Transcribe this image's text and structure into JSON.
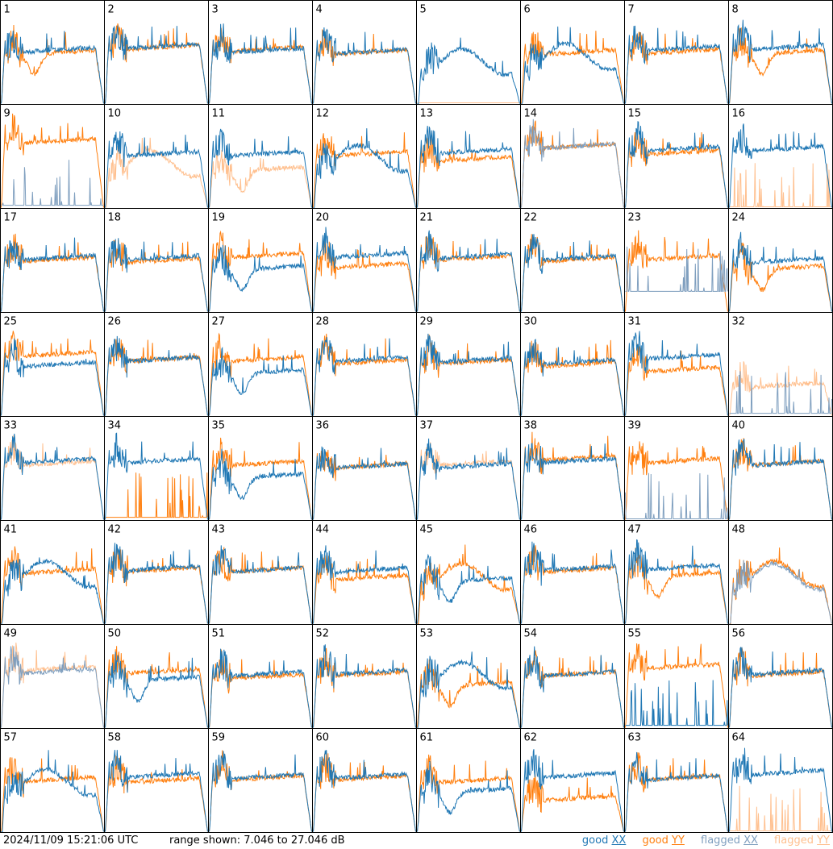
{
  "footer": {
    "timestamp": "2024/11/09 15:21:06 UTC",
    "range_text": "range shown: 7.046 to 27.046 dB"
  },
  "legend": [
    {
      "label": "good",
      "pol": "XX",
      "color": "#1f77b4"
    },
    {
      "label": "good",
      "pol": "YY",
      "color": "#ff7f0e"
    },
    {
      "label": "flagged",
      "pol": "XX",
      "color": "#7f9fbf"
    },
    {
      "label": "flagged",
      "pol": "YY",
      "color": "#ffc08f"
    }
  ],
  "colors": {
    "good_xx": "#1f77b4",
    "good_yy": "#ff7f0e",
    "flagged_xx": "#7f9fbf",
    "flagged_yy": "#ffc08f"
  },
  "chart_data": {
    "type": "line",
    "title": "",
    "xlabel": "",
    "ylabel": "",
    "ylim": [
      7.046,
      27.046
    ],
    "grid_rows": 8,
    "grid_cols": 8,
    "panels": [
      {
        "id": "1",
        "xx": {
          "flagged": false,
          "level": 17.5,
          "shape": "normal"
        },
        "yy": {
          "flagged": false,
          "level": 17.0,
          "shape": "dip"
        }
      },
      {
        "id": "2",
        "xx": {
          "flagged": false,
          "level": 18.2,
          "shape": "normal"
        },
        "yy": {
          "flagged": false,
          "level": 18.0,
          "shape": "normal"
        }
      },
      {
        "id": "3",
        "xx": {
          "flagged": false,
          "level": 17.4,
          "shape": "normal"
        },
        "yy": {
          "flagged": false,
          "level": 17.6,
          "shape": "normal"
        }
      },
      {
        "id": "4",
        "xx": {
          "flagged": false,
          "level": 17.2,
          "shape": "normal"
        },
        "yy": {
          "flagged": false,
          "level": 17.0,
          "shape": "normal"
        }
      },
      {
        "id": "5",
        "xx": {
          "flagged": false,
          "level": 15.0,
          "shape": "wave"
        },
        "yy": {
          "flagged": true,
          "level": 7.2,
          "shape": "flat"
        }
      },
      {
        "id": "6",
        "xx": {
          "flagged": false,
          "level": 16.0,
          "shape": "wave"
        },
        "yy": {
          "flagged": false,
          "level": 17.0,
          "shape": "normal"
        }
      },
      {
        "id": "7",
        "xx": {
          "flagged": false,
          "level": 17.8,
          "shape": "normal"
        },
        "yy": {
          "flagged": false,
          "level": 17.2,
          "shape": "normal"
        }
      },
      {
        "id": "8",
        "xx": {
          "flagged": false,
          "level": 18.0,
          "shape": "normal"
        },
        "yy": {
          "flagged": false,
          "level": 17.0,
          "shape": "dip"
        }
      },
      {
        "id": "9",
        "xx": {
          "flagged": true,
          "level": 7.5,
          "shape": "spikes"
        },
        "yy": {
          "flagged": false,
          "level": 20.0,
          "shape": "normal"
        }
      },
      {
        "id": "10",
        "xx": {
          "flagged": false,
          "level": 17.5,
          "shape": "normal"
        },
        "yy": {
          "flagged": true,
          "level": 15.5,
          "shape": "wave"
        }
      },
      {
        "id": "11",
        "xx": {
          "flagged": false,
          "level": 17.5,
          "shape": "normal"
        },
        "yy": {
          "flagged": true,
          "level": 14.5,
          "shape": "dip"
        }
      },
      {
        "id": "12",
        "xx": {
          "flagged": false,
          "level": 16.5,
          "shape": "wave"
        },
        "yy": {
          "flagged": false,
          "level": 17.5,
          "shape": "normal"
        }
      },
      {
        "id": "13",
        "xx": {
          "flagged": false,
          "level": 18.0,
          "shape": "normal"
        },
        "yy": {
          "flagged": false,
          "level": 16.5,
          "shape": "normal"
        }
      },
      {
        "id": "14",
        "xx": {
          "flagged": true,
          "level": 19.0,
          "shape": "normal"
        },
        "yy": {
          "flagged": false,
          "level": 19.0,
          "shape": "normal"
        }
      },
      {
        "id": "15",
        "xx": {
          "flagged": false,
          "level": 18.5,
          "shape": "normal"
        },
        "yy": {
          "flagged": false,
          "level": 17.8,
          "shape": "normal"
        }
      },
      {
        "id": "16",
        "xx": {
          "flagged": false,
          "level": 18.5,
          "shape": "normal"
        },
        "yy": {
          "flagged": true,
          "level": 7.2,
          "shape": "spikes"
        }
      },
      {
        "id": "17",
        "xx": {
          "flagged": false,
          "level": 17.5,
          "shape": "normal"
        },
        "yy": {
          "flagged": false,
          "level": 17.2,
          "shape": "normal"
        }
      },
      {
        "id": "18",
        "xx": {
          "flagged": false,
          "level": 17.5,
          "shape": "normal"
        },
        "yy": {
          "flagged": false,
          "level": 17.0,
          "shape": "normal"
        }
      },
      {
        "id": "19",
        "xx": {
          "flagged": false,
          "level": 15.5,
          "shape": "dip"
        },
        "yy": {
          "flagged": false,
          "level": 18.0,
          "shape": "normal"
        }
      },
      {
        "id": "20",
        "xx": {
          "flagged": false,
          "level": 18.0,
          "shape": "normal"
        },
        "yy": {
          "flagged": false,
          "level": 16.0,
          "shape": "normal"
        }
      },
      {
        "id": "21",
        "xx": {
          "flagged": false,
          "level": 17.8,
          "shape": "normal"
        },
        "yy": {
          "flagged": false,
          "level": 17.5,
          "shape": "normal"
        }
      },
      {
        "id": "22",
        "xx": {
          "flagged": false,
          "level": 17.5,
          "shape": "normal"
        },
        "yy": {
          "flagged": false,
          "level": 17.2,
          "shape": "normal"
        }
      },
      {
        "id": "23",
        "xx": {
          "flagged": true,
          "level": 11.0,
          "shape": "spikes"
        },
        "yy": {
          "flagged": false,
          "level": 17.5,
          "shape": "normal"
        }
      },
      {
        "id": "24",
        "xx": {
          "flagged": false,
          "level": 17.0,
          "shape": "normal"
        },
        "yy": {
          "flagged": false,
          "level": 15.5,
          "shape": "dip"
        }
      },
      {
        "id": "25",
        "xx": {
          "flagged": false,
          "level": 17.0,
          "shape": "normal"
        },
        "yy": {
          "flagged": false,
          "level": 19.0,
          "shape": "normal"
        }
      },
      {
        "id": "26",
        "xx": {
          "flagged": false,
          "level": 18.0,
          "shape": "normal"
        },
        "yy": {
          "flagged": false,
          "level": 18.0,
          "shape": "normal"
        }
      },
      {
        "id": "27",
        "xx": {
          "flagged": false,
          "level": 15.5,
          "shape": "dip"
        },
        "yy": {
          "flagged": false,
          "level": 18.0,
          "shape": "normal"
        }
      },
      {
        "id": "28",
        "xx": {
          "flagged": false,
          "level": 18.0,
          "shape": "normal"
        },
        "yy": {
          "flagged": false,
          "level": 17.5,
          "shape": "normal"
        }
      },
      {
        "id": "29",
        "xx": {
          "flagged": false,
          "level": 17.8,
          "shape": "normal"
        },
        "yy": {
          "flagged": false,
          "level": 17.5,
          "shape": "normal"
        }
      },
      {
        "id": "30",
        "xx": {
          "flagged": false,
          "level": 17.5,
          "shape": "normal"
        },
        "yy": {
          "flagged": false,
          "level": 17.0,
          "shape": "normal"
        }
      },
      {
        "id": "31",
        "xx": {
          "flagged": false,
          "level": 18.5,
          "shape": "normal"
        },
        "yy": {
          "flagged": false,
          "level": 16.0,
          "shape": "normal"
        }
      },
      {
        "id": "32",
        "xx": {
          "flagged": true,
          "level": 7.5,
          "shape": "spikes"
        },
        "yy": {
          "flagged": true,
          "level": 13.0,
          "shape": "normal"
        }
      },
      {
        "id": "33",
        "xx": {
          "flagged": false,
          "level": 18.5,
          "shape": "normal"
        },
        "yy": {
          "flagged": true,
          "level": 18.0,
          "shape": "normal"
        }
      },
      {
        "id": "34",
        "xx": {
          "flagged": false,
          "level": 18.5,
          "shape": "normal"
        },
        "yy": {
          "flagged": false,
          "level": 7.5,
          "shape": "spikes"
        }
      },
      {
        "id": "35",
        "xx": {
          "flagged": false,
          "level": 15.5,
          "shape": "dip"
        },
        "yy": {
          "flagged": false,
          "level": 18.0,
          "shape": "normal"
        }
      },
      {
        "id": "36",
        "xx": {
          "flagged": false,
          "level": 17.5,
          "shape": "normal"
        },
        "yy": {
          "flagged": false,
          "level": 17.5,
          "shape": "normal"
        }
      },
      {
        "id": "37",
        "xx": {
          "flagged": false,
          "level": 17.5,
          "shape": "normal"
        },
        "yy": {
          "flagged": true,
          "level": 18.0,
          "shape": "normal"
        }
      },
      {
        "id": "38",
        "xx": {
          "flagged": false,
          "level": 18.5,
          "shape": "normal"
        },
        "yy": {
          "flagged": false,
          "level": 19.0,
          "shape": "normal"
        }
      },
      {
        "id": "39",
        "xx": {
          "flagged": true,
          "level": 7.2,
          "shape": "spikes"
        },
        "yy": {
          "flagged": false,
          "level": 18.5,
          "shape": "normal"
        }
      },
      {
        "id": "40",
        "xx": {
          "flagged": false,
          "level": 18.0,
          "shape": "normal"
        },
        "yy": {
          "flagged": false,
          "level": 18.0,
          "shape": "normal"
        }
      },
      {
        "id": "41",
        "xx": {
          "flagged": false,
          "level": 16.5,
          "shape": "wave"
        },
        "yy": {
          "flagged": false,
          "level": 17.2,
          "shape": "normal"
        }
      },
      {
        "id": "42",
        "xx": {
          "flagged": false,
          "level": 17.8,
          "shape": "normal"
        },
        "yy": {
          "flagged": false,
          "level": 17.5,
          "shape": "normal"
        }
      },
      {
        "id": "43",
        "xx": {
          "flagged": false,
          "level": 17.5,
          "shape": "normal"
        },
        "yy": {
          "flagged": false,
          "level": 17.5,
          "shape": "normal"
        }
      },
      {
        "id": "44",
        "xx": {
          "flagged": false,
          "level": 17.5,
          "shape": "normal"
        },
        "yy": {
          "flagged": false,
          "level": 16.0,
          "shape": "normal"
        }
      },
      {
        "id": "45",
        "xx": {
          "flagged": false,
          "level": 15.5,
          "shape": "dip"
        },
        "yy": {
          "flagged": false,
          "level": 16.0,
          "shape": "wave"
        }
      },
      {
        "id": "46",
        "xx": {
          "flagged": false,
          "level": 17.8,
          "shape": "normal"
        },
        "yy": {
          "flagged": false,
          "level": 17.5,
          "shape": "normal"
        }
      },
      {
        "id": "47",
        "xx": {
          "flagged": false,
          "level": 18.0,
          "shape": "normal"
        },
        "yy": {
          "flagged": false,
          "level": 16.5,
          "shape": "dip"
        }
      },
      {
        "id": "48",
        "xx": {
          "flagged": true,
          "level": 16.0,
          "shape": "wave"
        },
        "yy": {
          "flagged": false,
          "level": 16.5,
          "shape": "wave"
        }
      },
      {
        "id": "49",
        "xx": {
          "flagged": true,
          "level": 18.0,
          "shape": "normal"
        },
        "yy": {
          "flagged": true,
          "level": 18.5,
          "shape": "normal"
        }
      },
      {
        "id": "50",
        "xx": {
          "flagged": false,
          "level": 16.5,
          "shape": "dip"
        },
        "yy": {
          "flagged": false,
          "level": 18.0,
          "shape": "normal"
        }
      },
      {
        "id": "51",
        "xx": {
          "flagged": false,
          "level": 17.5,
          "shape": "normal"
        },
        "yy": {
          "flagged": false,
          "level": 17.0,
          "shape": "normal"
        }
      },
      {
        "id": "52",
        "xx": {
          "flagged": false,
          "level": 17.8,
          "shape": "normal"
        },
        "yy": {
          "flagged": false,
          "level": 17.5,
          "shape": "normal"
        }
      },
      {
        "id": "53",
        "xx": {
          "flagged": false,
          "level": 17.0,
          "shape": "wave"
        },
        "yy": {
          "flagged": false,
          "level": 15.5,
          "shape": "dip"
        }
      },
      {
        "id": "54",
        "xx": {
          "flagged": false,
          "level": 17.5,
          "shape": "normal"
        },
        "yy": {
          "flagged": false,
          "level": 17.5,
          "shape": "normal"
        }
      },
      {
        "id": "55",
        "xx": {
          "flagged": false,
          "level": 7.5,
          "shape": "spikes"
        },
        "yy": {
          "flagged": false,
          "level": 19.0,
          "shape": "normal"
        }
      },
      {
        "id": "56",
        "xx": {
          "flagged": false,
          "level": 17.8,
          "shape": "normal"
        },
        "yy": {
          "flagged": false,
          "level": 17.5,
          "shape": "normal"
        }
      },
      {
        "id": "57",
        "xx": {
          "flagged": false,
          "level": 16.5,
          "shape": "wave"
        },
        "yy": {
          "flagged": false,
          "level": 17.2,
          "shape": "normal"
        }
      },
      {
        "id": "58",
        "xx": {
          "flagged": false,
          "level": 18.0,
          "shape": "normal"
        },
        "yy": {
          "flagged": false,
          "level": 17.0,
          "shape": "normal"
        }
      },
      {
        "id": "59",
        "xx": {
          "flagged": false,
          "level": 17.8,
          "shape": "normal"
        },
        "yy": {
          "flagged": false,
          "level": 17.5,
          "shape": "normal"
        }
      },
      {
        "id": "60",
        "xx": {
          "flagged": false,
          "level": 17.8,
          "shape": "normal"
        },
        "yy": {
          "flagged": false,
          "level": 17.5,
          "shape": "normal"
        }
      },
      {
        "id": "61",
        "xx": {
          "flagged": false,
          "level": 15.0,
          "shape": "dip"
        },
        "yy": {
          "flagged": false,
          "level": 17.0,
          "shape": "normal"
        }
      },
      {
        "id": "62",
        "xx": {
          "flagged": false,
          "level": 18.0,
          "shape": "normal"
        },
        "yy": {
          "flagged": false,
          "level": 13.5,
          "shape": "normal"
        }
      },
      {
        "id": "63",
        "xx": {
          "flagged": false,
          "level": 17.5,
          "shape": "normal"
        },
        "yy": {
          "flagged": false,
          "level": 17.5,
          "shape": "normal"
        }
      },
      {
        "id": "64",
        "xx": {
          "flagged": false,
          "level": 18.5,
          "shape": "normal"
        },
        "yy": {
          "flagged": true,
          "level": 7.2,
          "shape": "spikes"
        }
      }
    ]
  }
}
